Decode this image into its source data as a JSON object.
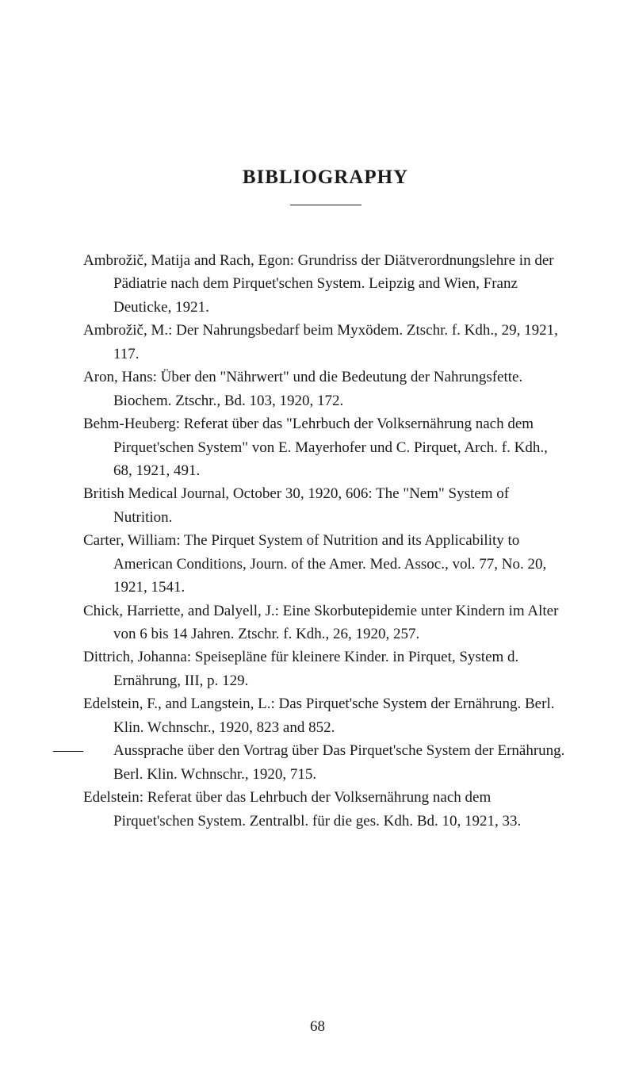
{
  "title": "BIBLIOGRAPHY",
  "entries": [
    {
      "text": "Ambrožič, Matija and Rach, Egon: Grundriss der Diätverord­nungslehre in der Pädiatrie nach dem Pirquet'schen System. Leipzig and Wien, Franz Deuticke, 1921."
    },
    {
      "text": "Ambrožič, M.: Der Nahrungsbedarf beim Myxödem. Ztschr. f. Kdh., 29, 1921, 117."
    },
    {
      "text": "Aron, Hans: Über den \"Nährwert\" und die Bedeutung der Nahrungsfette. Biochem. Ztschr., Bd. 103, 1920, 172."
    },
    {
      "text": "Behm-Heuberg: Referat über das \"Lehrbuch der Volksernährung nach dem Pirquet'schen System\" von E. Mayerhofer und C. Pirquet, Arch. f. Kdh., 68, 1921, 491."
    },
    {
      "text": "British Medical Journal, October 30, 1920, 606: The \"Nem\" System of Nutrition."
    },
    {
      "text": "Carter, William: The Pirquet System of Nutrition and its Ap­plicability to American Conditions, Journ. of the Amer. Med. Assoc., vol. 77, No. 20, 1921, 1541."
    },
    {
      "text": "Chick, Harriette, and Dalyell, J.: Eine Skorbutepidemie unter Kindern im Alter von 6 bis 14 Jahren. Ztschr. f. Kdh., 26, 1920, 257."
    },
    {
      "text": "Dittrich, Johanna: Speisepläne für kleinere Kinder. in Pirquet, System d. Ernährung, III, p. 129."
    },
    {
      "text": "Edelstein, F., and Langstein, L.: Das Pirquet'sche System der Ernährung. Berl. Klin. Wchnschr., 1920, 823 and 852."
    },
    {
      "text": "Aussprache über den Vortrag über Das Pirquet'sche Sys­tem der Ernährung. Berl. Klin. Wchnschr., 1920, 715.",
      "continuation": true
    },
    {
      "text": "Edelstein: Referat über das Lehrbuch der Volksernährung nach dem Pirquet'schen System. Zentralbl. für die ges. Kdh. Bd. 10, 1921, 33."
    }
  ],
  "pageNumber": "68",
  "colors": {
    "background": "#ffffff",
    "text": "#1a1a1a"
  },
  "typography": {
    "titleFontSize": 25,
    "bodyFontSize": 19,
    "lineHeight": 1.55,
    "fontFamily": "Georgia, Times New Roman, serif"
  },
  "dashSymbol": "——"
}
